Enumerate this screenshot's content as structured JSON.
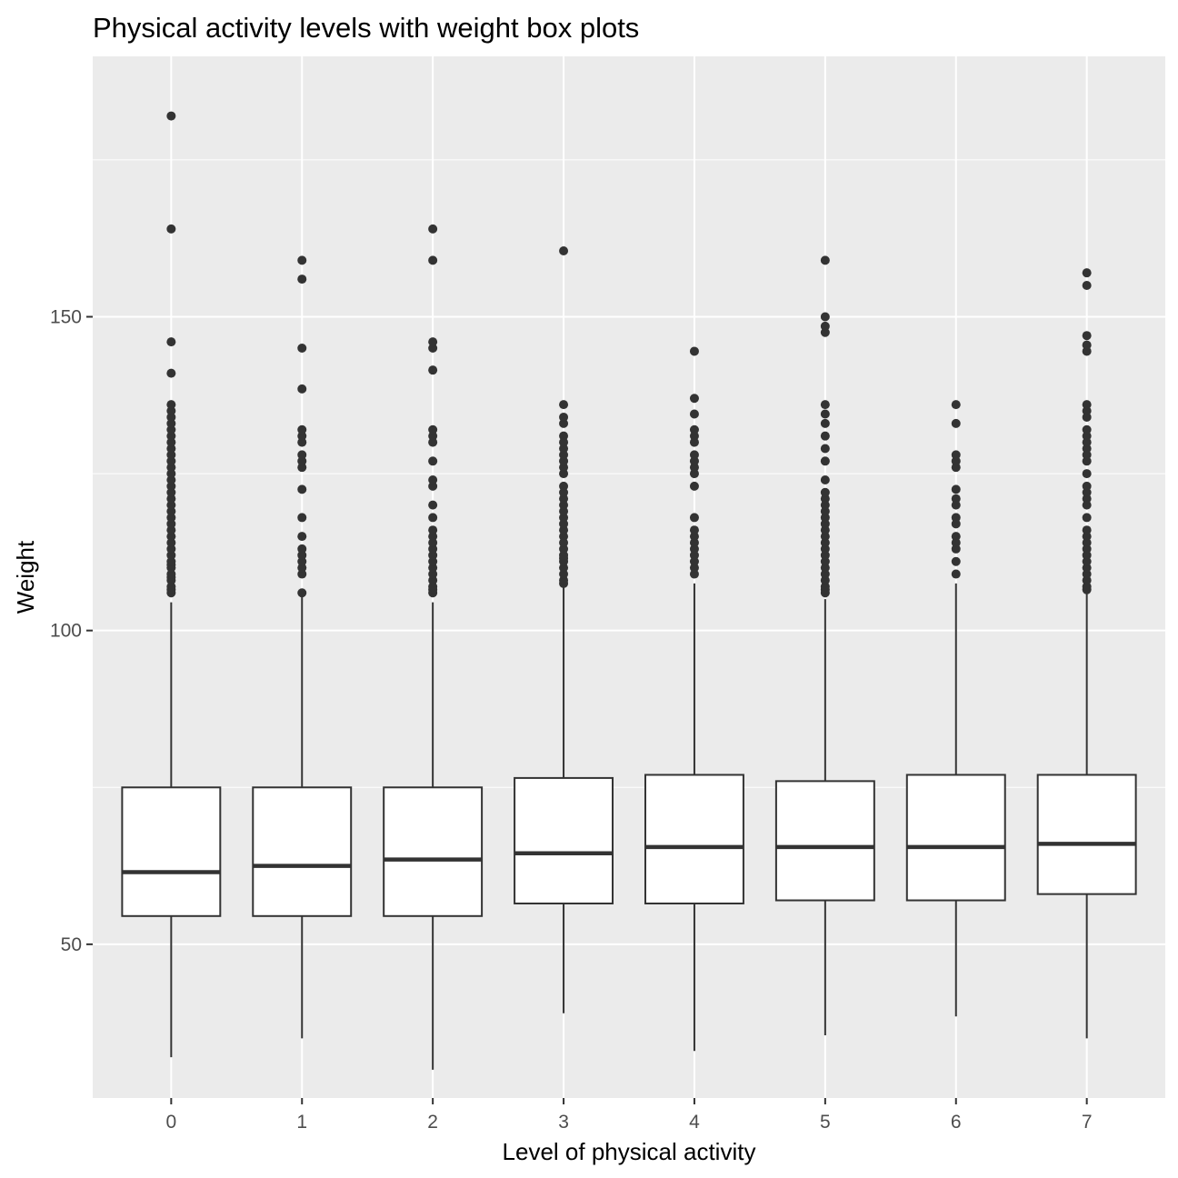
{
  "chart_data": {
    "type": "box",
    "title": "Physical activity levels with weight box plots",
    "xlabel": "Level of physical activity",
    "ylabel": "Weight",
    "categories": [
      "0",
      "1",
      "2",
      "3",
      "4",
      "5",
      "6",
      "7"
    ],
    "y_ticks": [
      50,
      100,
      150
    ],
    "y_tick_labels": [
      "50",
      "100",
      "150"
    ],
    "ylim": [
      25.5,
      191.5
    ],
    "grid": true,
    "boxes": [
      {
        "category": "0",
        "min": 32,
        "q1": 54.5,
        "median": 61.5,
        "q3": 75,
        "max": 104.5,
        "outliers": [
          106,
          106.5,
          107,
          108,
          108.5,
          109,
          110,
          110.5,
          111,
          112,
          113,
          114,
          115,
          116,
          117,
          118,
          119,
          120,
          121,
          122,
          123,
          124,
          125,
          126,
          127,
          128,
          129,
          130,
          131,
          132,
          133,
          134,
          135,
          136,
          141,
          146,
          164,
          182
        ]
      },
      {
        "category": "1",
        "min": 35,
        "q1": 54.5,
        "median": 62.5,
        "q3": 75,
        "max": 105.5,
        "outliers": [
          106,
          109,
          110,
          111,
          112,
          113,
          115,
          118,
          122.5,
          126,
          127,
          128,
          130,
          131,
          132,
          138.5,
          145,
          156,
          159
        ]
      },
      {
        "category": "2",
        "min": 30,
        "q1": 54.5,
        "median": 63.5,
        "q3": 75,
        "max": 104.5,
        "outliers": [
          106,
          106.5,
          107,
          108,
          109,
          110,
          111,
          112,
          113,
          114,
          115,
          116,
          118,
          120,
          123,
          124,
          127,
          130,
          131,
          132,
          141.5,
          145,
          146,
          159,
          164
        ]
      },
      {
        "category": "3",
        "min": 39,
        "q1": 56.5,
        "median": 64.5,
        "q3": 76.5,
        "max": 107,
        "outliers": [
          107.5,
          108,
          109,
          110,
          111,
          111.5,
          112,
          113,
          114,
          115,
          116,
          117,
          118,
          119,
          120,
          121,
          122,
          123,
          125,
          126,
          127,
          128,
          129,
          130,
          131,
          133,
          134,
          136,
          160.5
        ]
      },
      {
        "category": "4",
        "min": 33,
        "q1": 56.5,
        "median": 65.5,
        "q3": 77,
        "max": 107.5,
        "outliers": [
          109,
          110,
          111,
          112,
          113,
          114,
          115,
          116,
          118,
          123,
          125,
          126,
          127,
          128,
          130,
          131,
          132,
          134.5,
          137,
          144.5
        ]
      },
      {
        "category": "5",
        "min": 35.5,
        "q1": 57,
        "median": 65.5,
        "q3": 76,
        "max": 105,
        "outliers": [
          106,
          106.5,
          107,
          108,
          109,
          110,
          111,
          112,
          113,
          114,
          115,
          116,
          117,
          118,
          119,
          120,
          121,
          122,
          124,
          127,
          129,
          131,
          133,
          134.5,
          136,
          147.5,
          148.5,
          150,
          159
        ]
      },
      {
        "category": "6",
        "min": 38.5,
        "q1": 57,
        "median": 65.5,
        "q3": 77,
        "max": 107.5,
        "outliers": [
          109,
          111,
          113,
          114,
          115,
          117,
          118,
          120,
          121,
          122.5,
          126,
          127,
          128,
          133,
          136
        ]
      },
      {
        "category": "7",
        "min": 35,
        "q1": 58,
        "median": 66,
        "q3": 77,
        "max": 106.5,
        "outliers": [
          106.5,
          107,
          108,
          109,
          110,
          111,
          112,
          113,
          114,
          115,
          116,
          118,
          120,
          121,
          122,
          123,
          125,
          127,
          128,
          129,
          130,
          131,
          132,
          134,
          135,
          136,
          144.5,
          145.5,
          147,
          155,
          157
        ]
      }
    ]
  }
}
